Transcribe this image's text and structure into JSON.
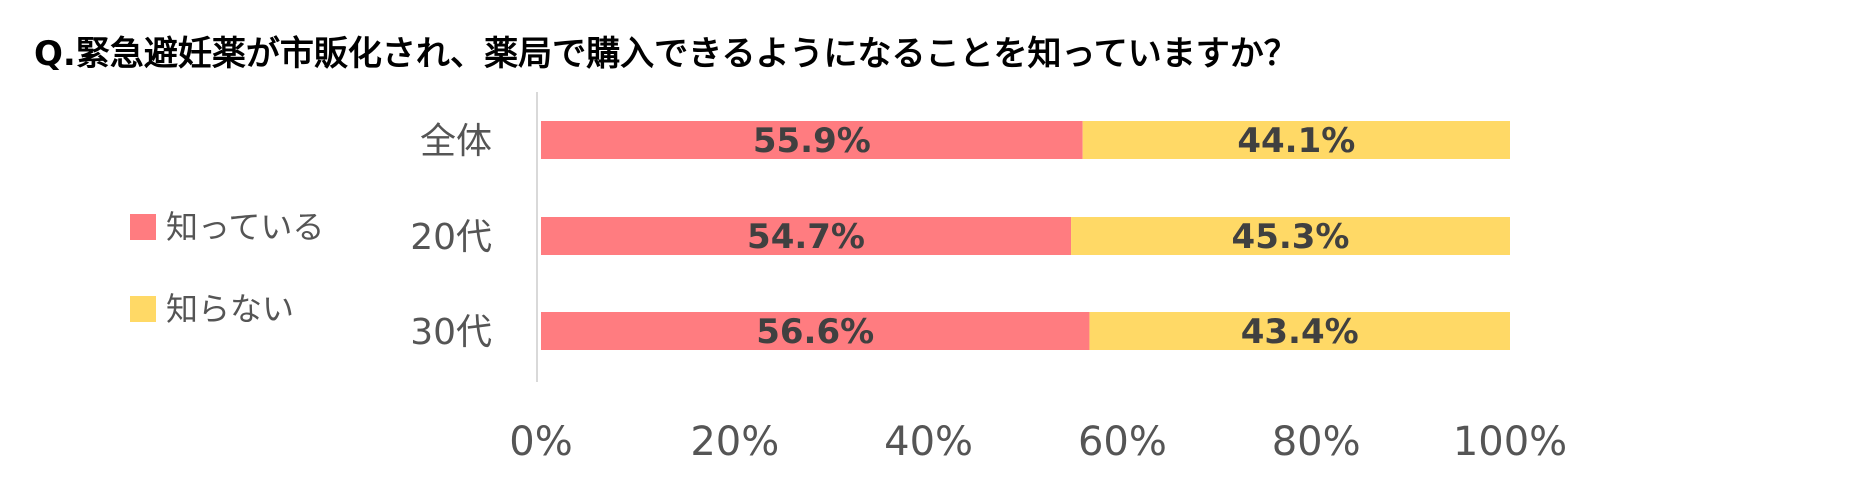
{
  "colors": {
    "known": "#ff7c80",
    "unknown": "#ffd966",
    "axis": "#d9d9d9",
    "text": "#555555",
    "value_text": "#404040"
  },
  "chart_data": {
    "type": "bar",
    "orientation": "horizontal",
    "stacked": true,
    "title": "Q.緊急避妊薬が市販化され、薬局で購入できるようになることを知っていますか？",
    "categories": [
      "全体",
      "20代",
      "30代"
    ],
    "series": [
      {
        "name": "知っている",
        "color": "#ff7c80",
        "values": [
          55.9,
          54.7,
          56.6
        ],
        "labels": [
          "55.9%",
          "54.7%",
          "56.6%"
        ]
      },
      {
        "name": "知らない",
        "color": "#ffd966",
        "values": [
          44.1,
          45.3,
          43.4
        ],
        "labels": [
          "44.1%",
          "45.3%",
          "43.4%"
        ]
      }
    ],
    "xlim": [
      0,
      100
    ],
    "x_ticks": [
      0,
      20,
      40,
      60,
      80,
      100
    ],
    "x_tick_labels": [
      "0%",
      "20%",
      "40%",
      "60%",
      "80%",
      "100%"
    ],
    "grid": false,
    "legend_position": "left"
  }
}
